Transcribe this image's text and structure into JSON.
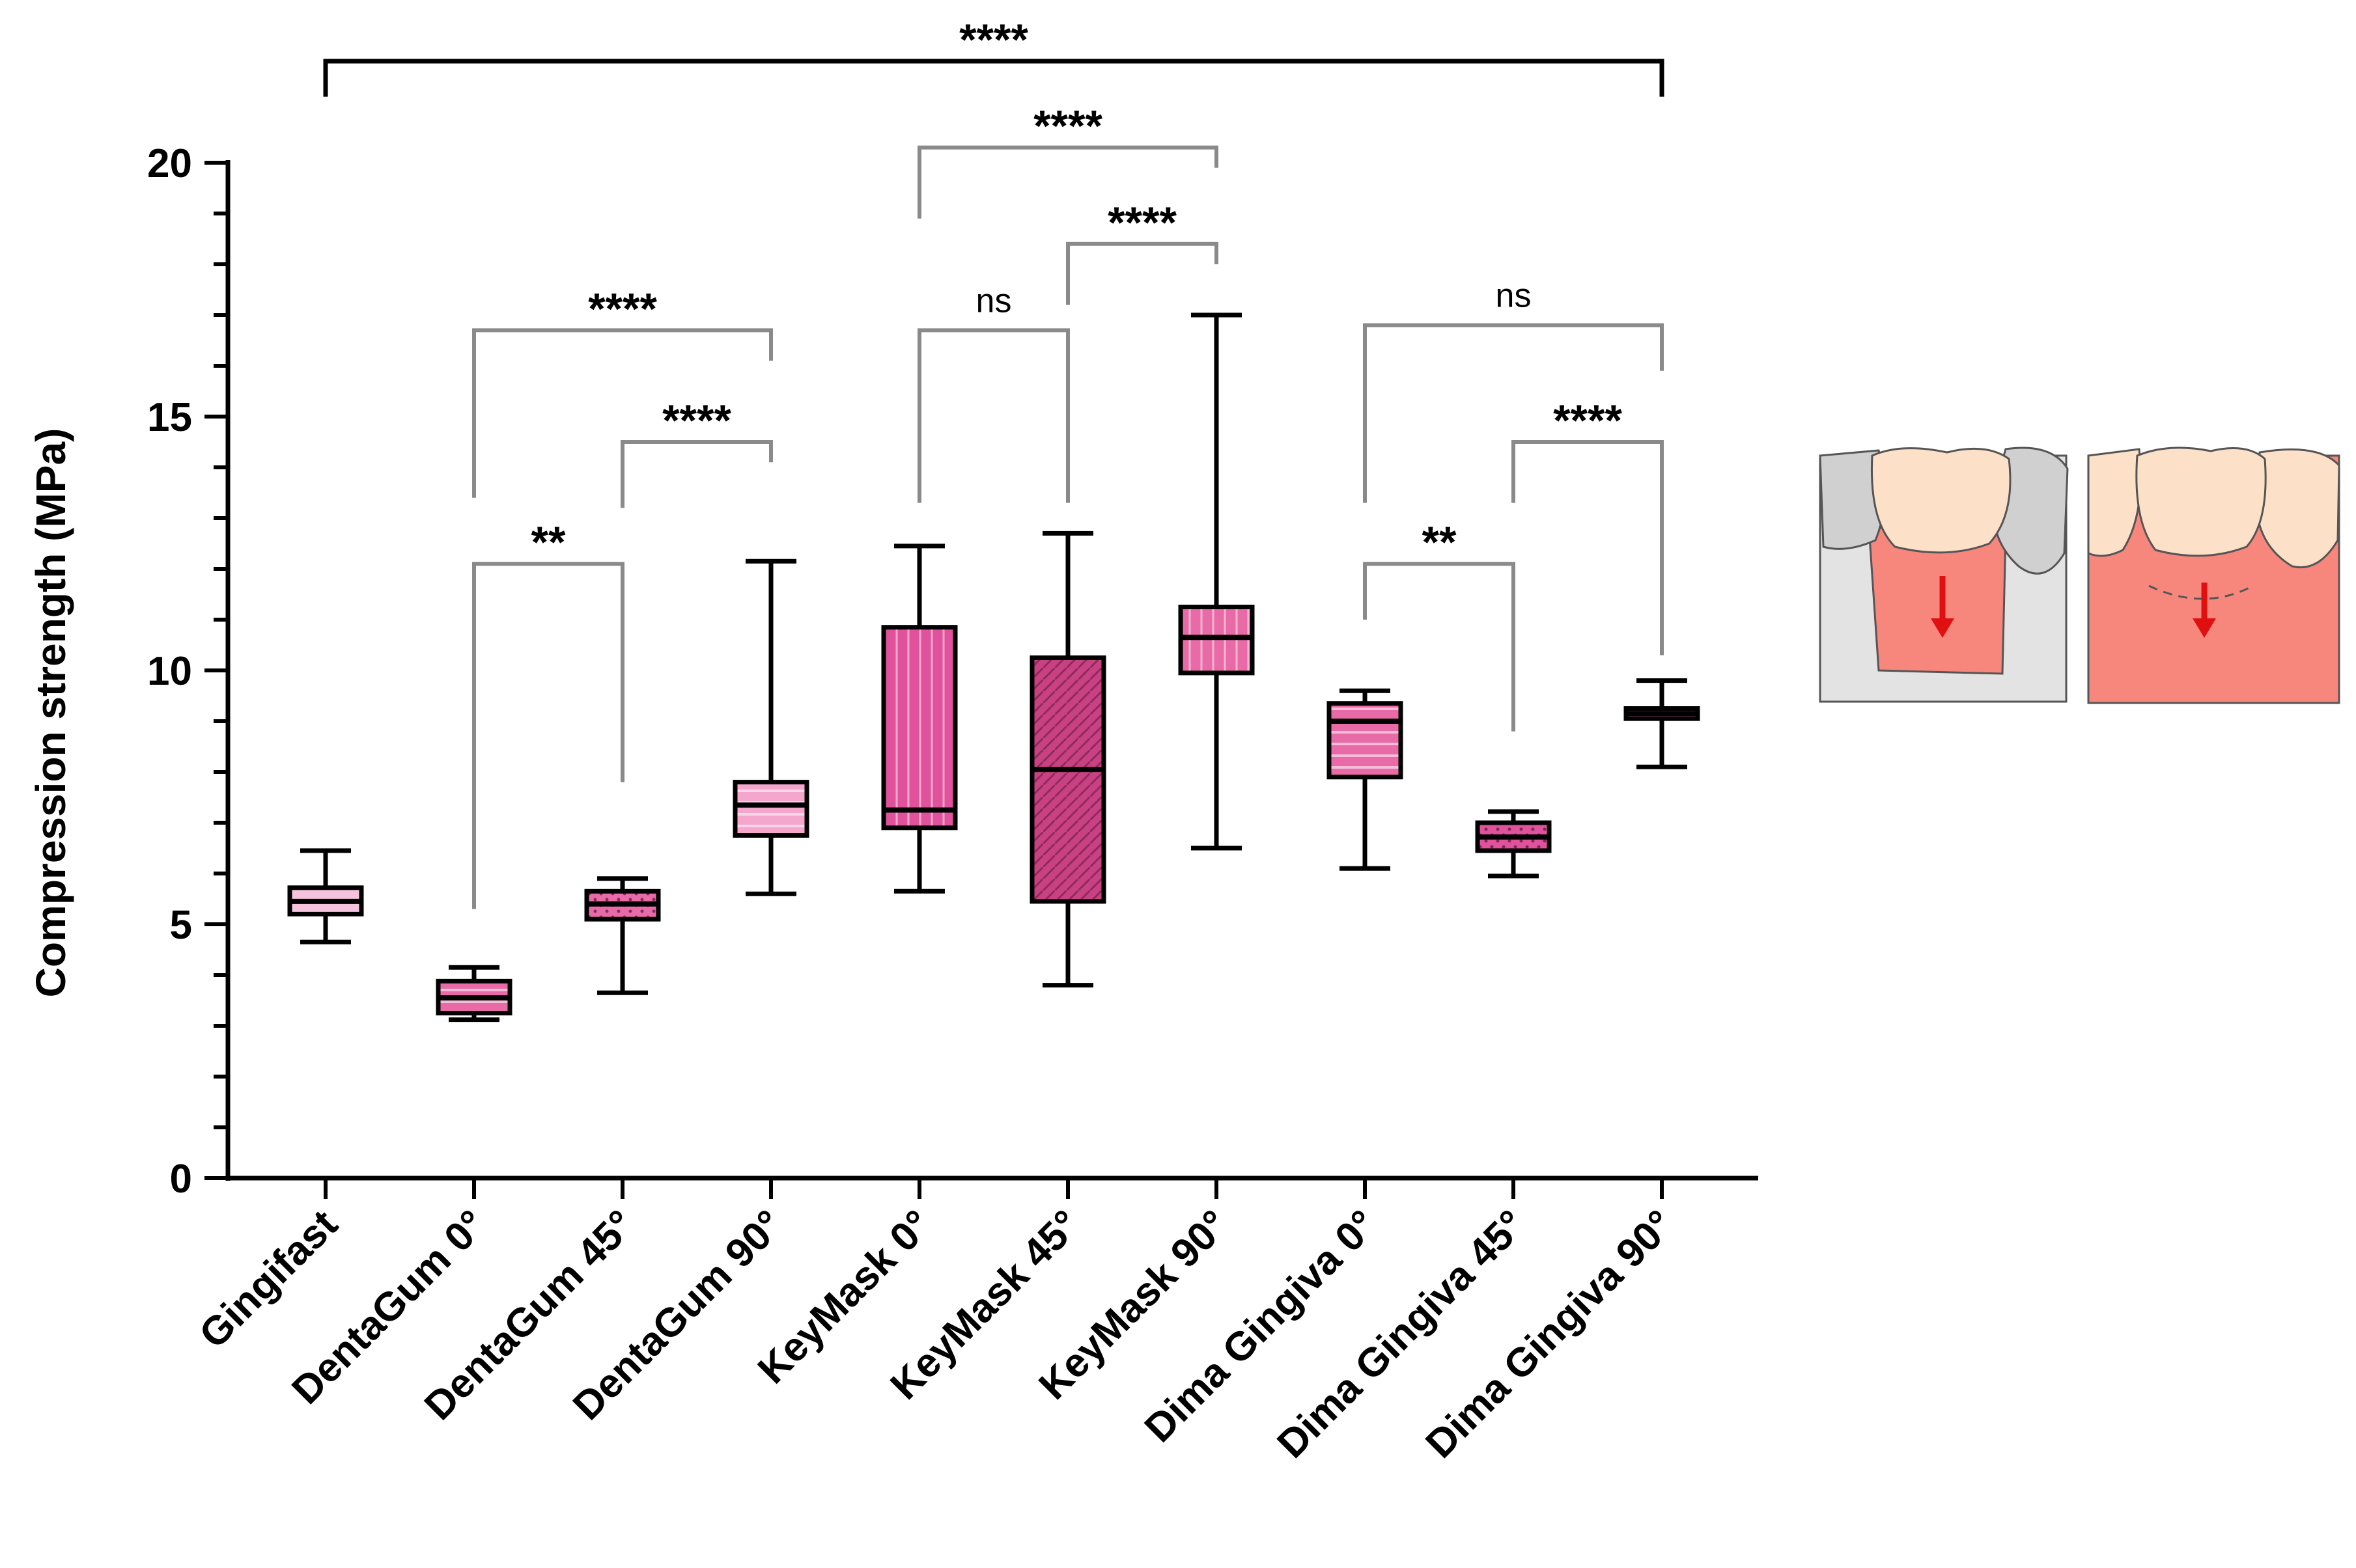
{
  "chart_data": {
    "type": "box",
    "ylabel": "Compression strength (MPa)",
    "ylim": [
      0,
      20
    ],
    "y_major_ticks": [
      0,
      5,
      10,
      15,
      20
    ],
    "y_tick_labels": [
      "0",
      "5",
      "10",
      "15",
      "20"
    ],
    "y_minor_step": 1,
    "grid": false,
    "legend": "none",
    "categories": [
      "Gingifast",
      "DentaGum 0°",
      "DentaGum 45°",
      "DentaGum 90°",
      "KeyMask 0°",
      "KeyMask 45°",
      "KeyMask 90°",
      "Dima Gingiva 0°",
      "Dima Gingiva 45°",
      "Dima Gingiva 90°"
    ],
    "boxes": [
      {
        "min": 4.65,
        "q1": 5.2,
        "median": 5.45,
        "q3": 5.72,
        "max": 6.45,
        "fill": "#f6c3de",
        "pattern": "none"
      },
      {
        "min": 3.12,
        "q1": 3.25,
        "median": 3.55,
        "q3": 3.88,
        "max": 4.15,
        "fill": "#e86aa6",
        "pattern": "horizontal"
      },
      {
        "min": 3.65,
        "q1": 5.1,
        "median": 5.4,
        "q3": 5.65,
        "max": 5.9,
        "fill": "#e86aa6",
        "pattern": "dotted"
      },
      {
        "min": 5.6,
        "q1": 6.75,
        "median": 7.35,
        "q3": 7.8,
        "max": 12.15,
        "fill": "#f4a6cc",
        "pattern": "horizontal"
      },
      {
        "min": 5.65,
        "q1": 6.9,
        "median": 7.25,
        "q3": 10.85,
        "max": 12.45,
        "fill": "#e0529b",
        "pattern": "vertical"
      },
      {
        "min": 3.8,
        "q1": 5.45,
        "median": 8.05,
        "q3": 10.25,
        "max": 12.7,
        "fill": "#c84283",
        "pattern": "diagonal"
      },
      {
        "min": 6.5,
        "q1": 9.95,
        "median": 10.65,
        "q3": 11.25,
        "max": 17.0,
        "fill": "#e86aa6",
        "pattern": "vertical"
      },
      {
        "min": 6.1,
        "q1": 7.9,
        "median": 9.0,
        "q3": 9.35,
        "max": 9.6,
        "fill": "#e86aa6",
        "pattern": "horizontal"
      },
      {
        "min": 5.95,
        "q1": 6.45,
        "median": 6.72,
        "q3": 7.0,
        "max": 7.22,
        "fill": "#e0529b",
        "pattern": "dotted"
      },
      {
        "min": 8.1,
        "q1": 9.05,
        "median": 9.15,
        "q3": 9.25,
        "max": 9.8,
        "fill": "#e86aa6",
        "pattern": "none"
      }
    ],
    "comparisons": [
      {
        "from": 0,
        "to": 9,
        "label": "****",
        "height": 22.0,
        "start_y": 21.3,
        "end_y": 21.3,
        "color": "#000000"
      },
      {
        "from": 4,
        "to": 6,
        "label": "****",
        "height": 20.3,
        "start_y": 18.9,
        "end_y": 19.9,
        "color": "#8a8a8a"
      },
      {
        "from": 5,
        "to": 6,
        "label": "****",
        "height": 18.4,
        "start_y": 17.2,
        "end_y": 18.0,
        "color": "#8a8a8a"
      },
      {
        "from": 4,
        "to": 5,
        "label": "ns",
        "height": 16.7,
        "start_y": 13.3,
        "end_y": 13.3,
        "color": "#8a8a8a"
      },
      {
        "from": 1,
        "to": 3,
        "label": "****",
        "height": 16.7,
        "start_y": 13.4,
        "end_y": 16.1,
        "color": "#8a8a8a"
      },
      {
        "from": 2,
        "to": 3,
        "label": "****",
        "height": 14.5,
        "start_y": 13.2,
        "end_y": 14.1,
        "color": "#8a8a8a"
      },
      {
        "from": 1,
        "to": 2,
        "label": "**",
        "height": 12.1,
        "start_y": 5.3,
        "end_y": 7.8,
        "color": "#8a8a8a"
      },
      {
        "from": 7,
        "to": 9,
        "label": "ns",
        "height": 16.8,
        "start_y": 13.3,
        "end_y": 15.9,
        "color": "#8a8a8a"
      },
      {
        "from": 8,
        "to": 9,
        "label": "****",
        "height": 14.5,
        "start_y": 13.3,
        "end_y": 10.3,
        "color": "#8a8a8a"
      },
      {
        "from": 7,
        "to": 8,
        "label": "**",
        "height": 12.1,
        "start_y": 11.0,
        "end_y": 8.8,
        "color": "#8a8a8a"
      }
    ]
  },
  "inset": {
    "panels": [
      {
        "name": "tooth-embedded-in-gum",
        "background": "#e3e3e3",
        "tooth": "#fde0c8",
        "gum": "#f7877c",
        "arrow": "#e01010"
      },
      {
        "name": "tooth-on-gum-block",
        "background": "#f7877c",
        "tooth": "#fde0c8",
        "gum": "#f7877c",
        "arrow": "#e01010"
      }
    ]
  }
}
